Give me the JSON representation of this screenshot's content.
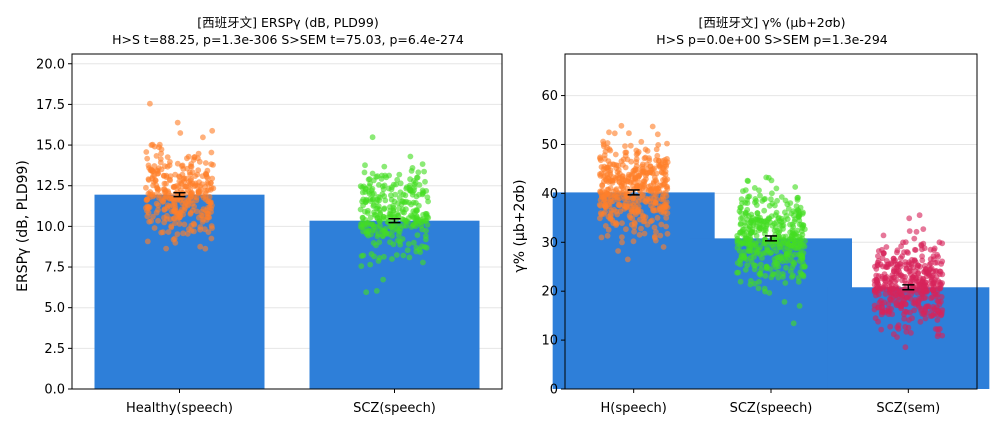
{
  "chart_data": [
    {
      "type": "bar",
      "title": "[西班牙文] ERSPγ (dB, PLD99)",
      "subtitle": "H>S t=88.25, p=1.3e-306 S>SEM t=75.03, p=6.4e-274",
      "xlabel": "",
      "ylabel": "ERSPγ (dB, PLD99)",
      "ylim": [
        0,
        20.6
      ],
      "yticks": [
        "0.0",
        "2.5",
        "5.0",
        "7.5",
        "10.0",
        "12.5",
        "15.0",
        "17.5",
        "20.0"
      ],
      "grid": "horizontal",
      "categories": [
        "Healthy(speech)",
        "SCZ(speech)"
      ],
      "values": [
        11.95,
        10.35
      ],
      "error": [
        0.12,
        0.12
      ],
      "bar_color": "#2e7fd9",
      "point_colors": [
        "#ff7f2a",
        "#44dd22"
      ],
      "points": [
        {
          "n": 330,
          "center": 12.1,
          "spread": 2.6,
          "min": 6.0,
          "max": 19.6
        },
        {
          "n": 300,
          "center": 10.8,
          "spread": 2.6,
          "min": 3.3,
          "max": 18.2
        }
      ]
    },
    {
      "type": "bar",
      "title": "[西班牙文] γ% (μb+2σb)",
      "subtitle": "H>S p=0.0e+00  S>SEM p=1.3e-294",
      "xlabel": "",
      "ylabel": "γ% (μb+2σb)",
      "ylim": [
        0,
        68.5
      ],
      "yticks": [
        "0",
        "10",
        "20",
        "30",
        "40",
        "50",
        "60"
      ],
      "grid": "horizontal",
      "categories": [
        "H(speech)",
        "SCZ(speech)",
        "SCZ(sem)"
      ],
      "values": [
        40.2,
        30.8,
        20.8
      ],
      "error": [
        0.5,
        0.5,
        0.5
      ],
      "bar_color": "#2e7fd9",
      "point_colors": [
        "#ff7f2a",
        "#44dd22",
        "#d6245a"
      ],
      "points": [
        {
          "n": 430,
          "center": 40.5,
          "spread": 9.0,
          "min": 15.0,
          "max": 65.5
        },
        {
          "n": 400,
          "center": 31.0,
          "spread": 8.5,
          "min": 10.5,
          "max": 58.5
        },
        {
          "n": 430,
          "center": 21.5,
          "spread": 7.5,
          "min": 5.0,
          "max": 48.5
        }
      ]
    }
  ]
}
